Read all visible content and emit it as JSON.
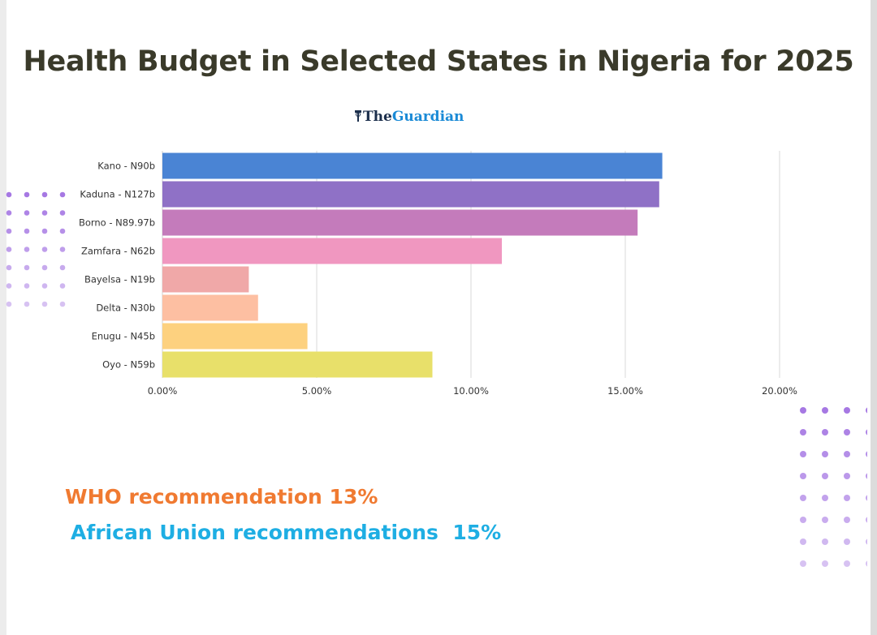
{
  "title": "Health Budget in Selected States in Nigeria for 2025",
  "logo": {
    "text_the": "The",
    "text_brand": "Guardian",
    "icon": "guardian-logo-icon",
    "colors": {
      "the": "#1c2f4c",
      "brand": "#1a8ad6"
    }
  },
  "chart_data": {
    "type": "bar",
    "orientation": "horizontal",
    "categories": [
      "Kano - N90b",
      "Kaduna - N127b",
      "Borno - N89.97b",
      "Zamfara - N62b",
      "Bayelsa - N19b",
      "Delta - N30b",
      "Enugu - N45b",
      "Oyo - N59b"
    ],
    "values": [
      16.2,
      16.1,
      15.4,
      11.0,
      2.8,
      3.1,
      4.7,
      8.75
    ],
    "colors": [
      "#4a84d4",
      "#8f71c6",
      "#c47bbb",
      "#f097c0",
      "#f0a8a8",
      "#fdbfa2",
      "#fdd17f",
      "#e8e06a"
    ],
    "xlim": [
      0,
      20
    ],
    "x_ticks": [
      "0.00%",
      "5.00%",
      "10.00%",
      "15.00%",
      "20.00%"
    ],
    "x_tick_values": [
      0,
      5,
      10,
      15,
      20
    ],
    "grid": true,
    "title": "Health Budget in Selected States in Nigeria for 2025",
    "xlabel": "",
    "ylabel": ""
  },
  "notes": {
    "who": "WHO recommendation 13%",
    "au": "African Union recommendations  15%"
  },
  "decor": {
    "dot_color": "#a678e3",
    "left_dots_icon": "dot-grid-icon",
    "right_dots_icon": "dot-grid-icon"
  }
}
